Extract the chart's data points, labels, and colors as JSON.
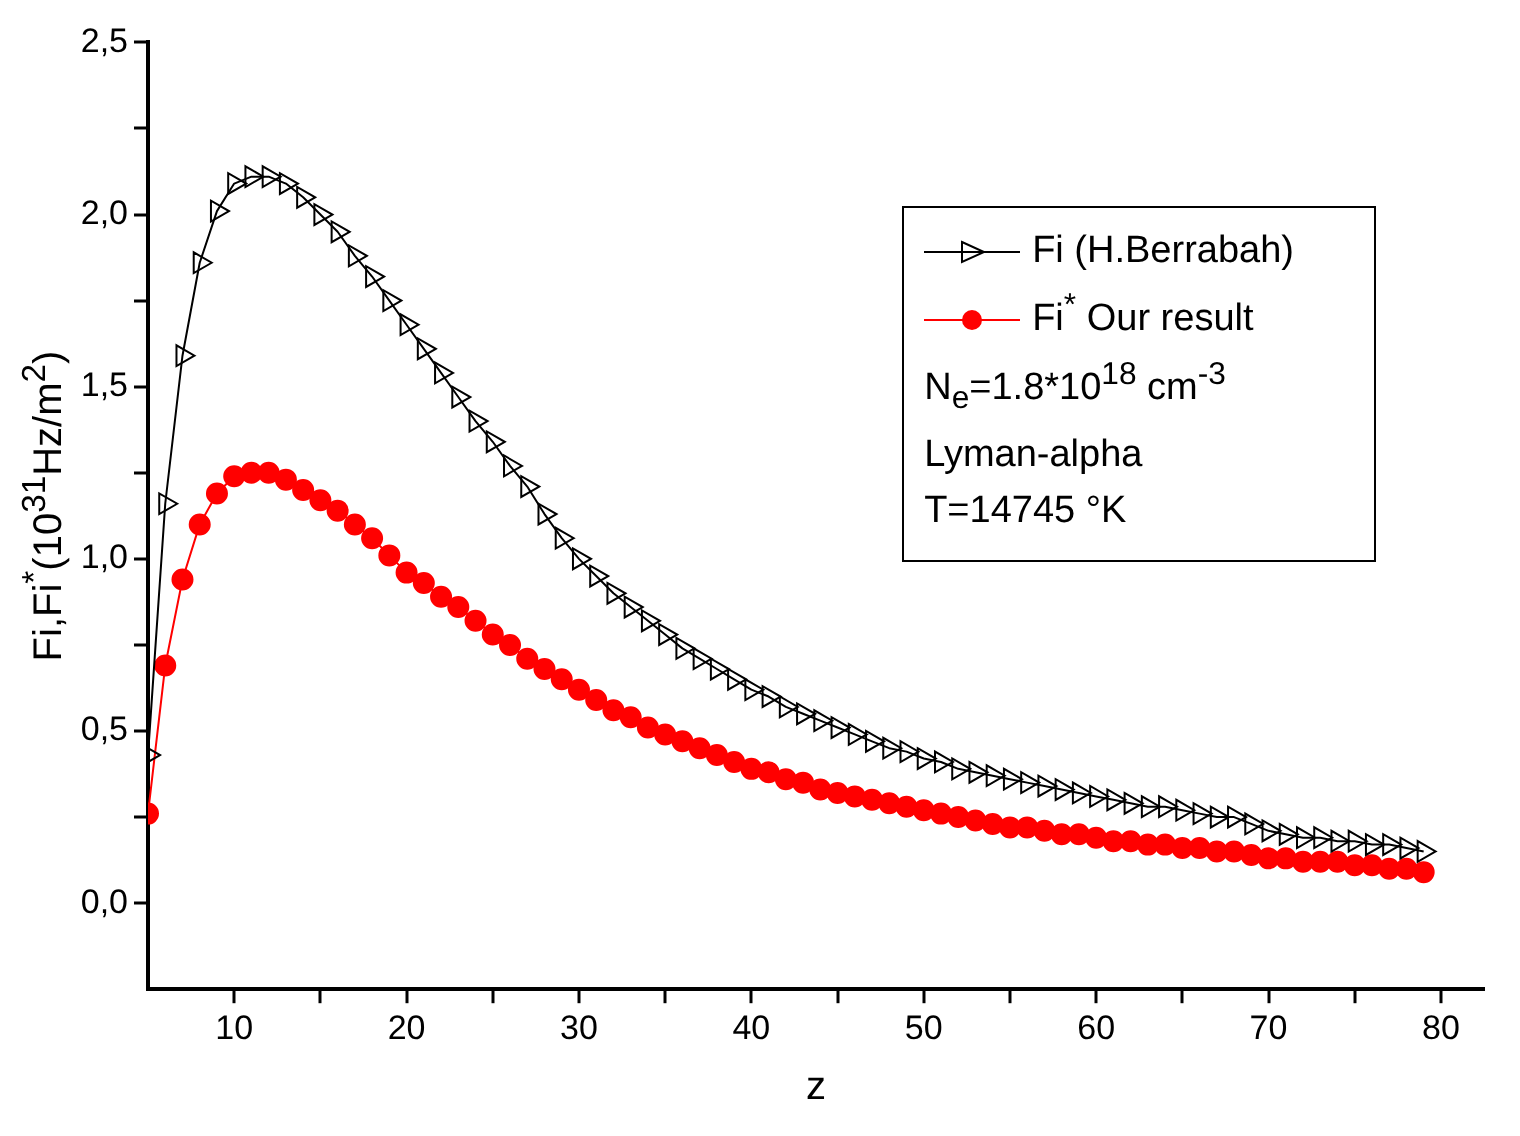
{
  "chart_data": {
    "type": "line",
    "xlabel": "z",
    "ylabel": "Fi,Fi$^{*}$(10$^{31}$Hz/m$^{2}$)",
    "xlim": [
      5,
      82.5
    ],
    "xticks": [
      10,
      {
        "value": 15,
        "label": null
      },
      20,
      {
        "value": 25,
        "label": null
      },
      30,
      {
        "value": 35,
        "label": null
      },
      40,
      {
        "value": 45,
        "label": null
      },
      50,
      {
        "value": 55,
        "label": null
      },
      60,
      {
        "value": 65,
        "label": null
      },
      70,
      {
        "value": 75,
        "label": null
      },
      80
    ],
    "ylim": [
      -0.25,
      2.5
    ],
    "yticks": [
      {
        "value": 0,
        "label": "0,0"
      },
      {
        "value": 0.25,
        "label": null
      },
      {
        "value": 0.5,
        "label": "0,5"
      },
      {
        "value": 0.75,
        "label": null
      },
      {
        "value": 1,
        "label": "1,0"
      },
      {
        "value": 1.25,
        "label": null
      },
      {
        "value": 1.5,
        "label": "1,5"
      },
      {
        "value": 1.75,
        "label": null
      },
      {
        "value": 2,
        "label": "2,0"
      },
      {
        "value": 2.25,
        "label": null
      },
      {
        "value": 2.5,
        "label": "2,5"
      }
    ],
    "x": [
      5,
      6,
      7,
      8,
      9,
      10,
      11,
      12,
      13,
      14,
      15,
      16,
      17,
      18,
      19,
      20,
      21,
      22,
      23,
      24,
      25,
      26,
      27,
      28,
      29,
      30,
      31,
      32,
      33,
      34,
      35,
      36,
      37,
      38,
      39,
      40,
      41,
      42,
      43,
      44,
      45,
      46,
      47,
      48,
      49,
      50,
      51,
      52,
      53,
      54,
      55,
      56,
      57,
      58,
      59,
      60,
      61,
      62,
      63,
      64,
      65,
      66,
      67,
      68,
      69,
      70,
      71,
      72,
      73,
      74,
      75,
      76,
      77,
      78,
      79
    ],
    "series": [
      {
        "name": "Fi (H.Berrabah)",
        "color": "#000000",
        "marker": "triangle",
        "values": [
          0.43,
          1.16,
          1.59,
          1.86,
          2.01,
          2.09,
          2.11,
          2.11,
          2.09,
          2.05,
          2.0,
          1.95,
          1.88,
          1.82,
          1.75,
          1.68,
          1.61,
          1.54,
          1.47,
          1.4,
          1.34,
          1.27,
          1.21,
          1.13,
          1.06,
          1.0,
          0.95,
          0.9,
          0.86,
          0.82,
          0.78,
          0.74,
          0.71,
          0.68,
          0.65,
          0.62,
          0.6,
          0.57,
          0.55,
          0.53,
          0.51,
          0.49,
          0.47,
          0.45,
          0.44,
          0.42,
          0.41,
          0.39,
          0.38,
          0.37,
          0.36,
          0.35,
          0.34,
          0.33,
          0.32,
          0.31,
          0.3,
          0.29,
          0.28,
          0.28,
          0.27,
          0.26,
          0.25,
          0.25,
          0.23,
          0.21,
          0.2,
          0.19,
          0.19,
          0.18,
          0.18,
          0.17,
          0.17,
          0.16,
          0.15
        ]
      },
      {
        "name": "Fi$^{*}$ Our result",
        "color": "#ff0000",
        "marker": "circle",
        "values": [
          0.26,
          0.69,
          0.94,
          1.1,
          1.19,
          1.24,
          1.25,
          1.25,
          1.23,
          1.2,
          1.17,
          1.14,
          1.1,
          1.06,
          1.01,
          0.96,
          0.93,
          0.89,
          0.86,
          0.82,
          0.78,
          0.75,
          0.71,
          0.68,
          0.65,
          0.62,
          0.59,
          0.56,
          0.54,
          0.51,
          0.49,
          0.47,
          0.45,
          0.43,
          0.41,
          0.39,
          0.38,
          0.36,
          0.35,
          0.33,
          0.32,
          0.31,
          0.3,
          0.29,
          0.28,
          0.27,
          0.26,
          0.25,
          0.24,
          0.23,
          0.22,
          0.22,
          0.21,
          0.2,
          0.2,
          0.19,
          0.18,
          0.18,
          0.17,
          0.17,
          0.16,
          0.16,
          0.15,
          0.15,
          0.14,
          0.13,
          0.13,
          0.12,
          0.12,
          0.12,
          0.11,
          0.11,
          0.1,
          0.1,
          0.09
        ]
      }
    ],
    "legend": "top right",
    "grid": false,
    "annotations": [
      "N$_{e}$=1.8*10$^{18}$ cm$^{-3}$",
      "Lyman-alpha",
      "T=14745 °K"
    ]
  }
}
